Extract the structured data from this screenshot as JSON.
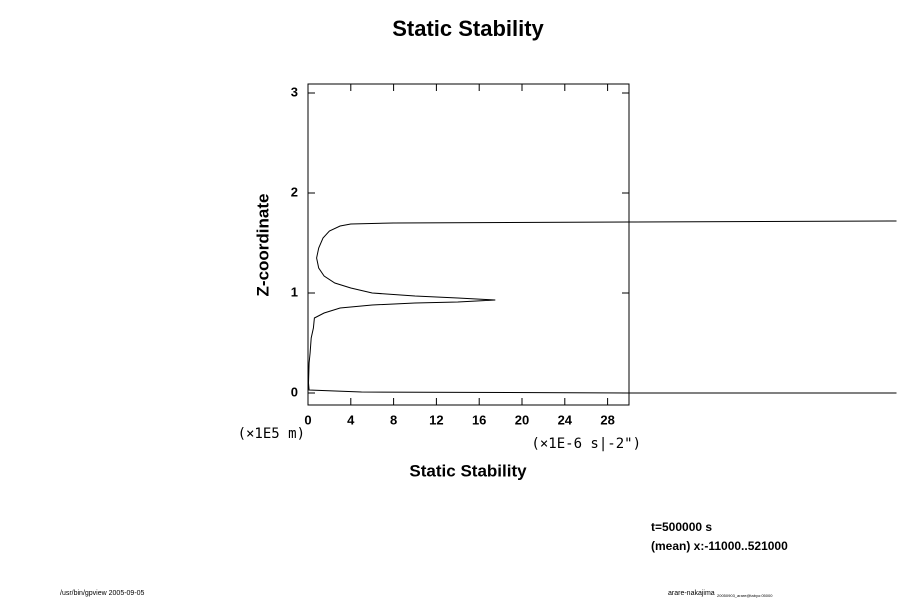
{
  "chart_data": {
    "type": "line",
    "title": "Static Stability",
    "x_label": "Static Stability",
    "y_label": "Z-coordinate",
    "y_unit": "(×1E5 m)",
    "x_unit": "(×1E-6 s|-2\")",
    "annotations": [
      "t=500000 s",
      "(mean) x:-11000..521000"
    ],
    "footer_left": "/usr/bin/gpview 2005-09-05",
    "footer_right": "arare-nakajima",
    "footer_right_small": "20050903_arare@tabyo:05000",
    "xlim": [
      0,
      30
    ],
    "ylim": [
      -0.12,
      3.09
    ],
    "xticks": [
      0,
      4,
      8,
      12,
      16,
      20,
      24,
      28
    ],
    "yticks": [
      0,
      1,
      2,
      3
    ],
    "series": [
      {
        "color": "#000000",
        "x": [
          55,
          30,
          8,
          4,
          3,
          2,
          1.4,
          1.0,
          0.8,
          1.0,
          1.5,
          2.5,
          4,
          6,
          10,
          14,
          17.5,
          14,
          10,
          6,
          3,
          1.5,
          0.6,
          0.5,
          0.3,
          0.2,
          0.1,
          0.05,
          0.1,
          5,
          30,
          55
        ],
        "y": [
          1.72,
          1.71,
          1.7,
          1.69,
          1.67,
          1.62,
          1.55,
          1.45,
          1.35,
          1.25,
          1.17,
          1.1,
          1.05,
          1.0,
          0.97,
          0.95,
          0.93,
          0.91,
          0.9,
          0.88,
          0.85,
          0.8,
          0.75,
          0.65,
          0.55,
          0.4,
          0.3,
          0.1,
          0.03,
          0.01,
          0.0,
          0.0
        ]
      }
    ]
  }
}
